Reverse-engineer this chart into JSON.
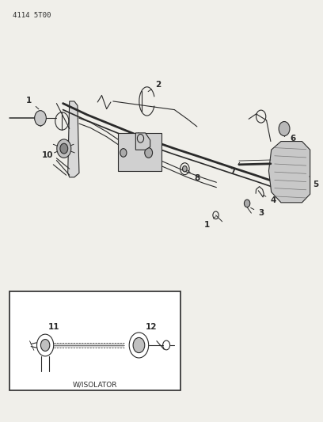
{
  "title": "4114 5T00",
  "bg_color": "#f0efea",
  "line_color": "#2a2a2a",
  "label_color": "#1a1a1a",
  "inset_label": "W/ISOLATOR"
}
